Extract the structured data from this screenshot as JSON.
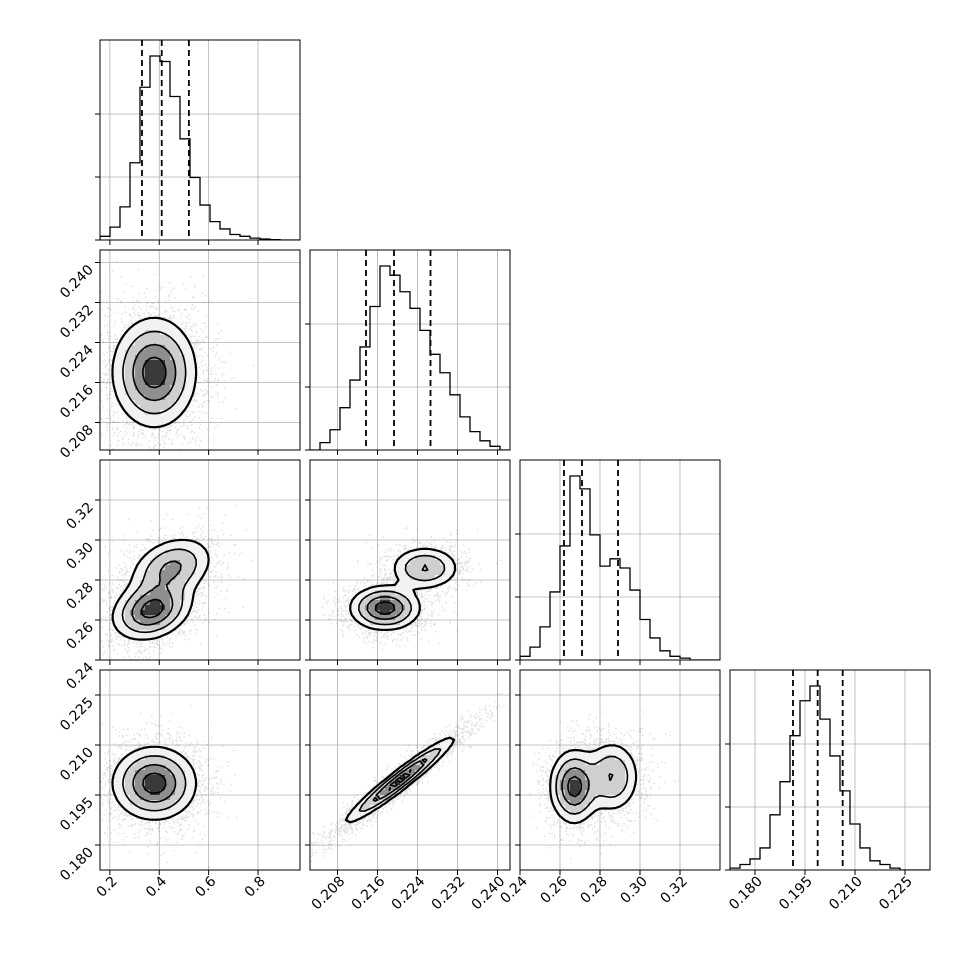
{
  "chart_data": {
    "type": "corner",
    "grid": true,
    "quantile_lines": "dashed",
    "colors": {
      "points": "#000000",
      "grid": "#b0b0b0",
      "axes": "#000000"
    },
    "parameters": [
      {
        "xlim": [
          0.16,
          0.97
        ],
        "ylim": [
          0.16,
          0.38
        ],
        "xticks": [
          "0.2",
          "0.4",
          "0.6",
          "0.8"
        ],
        "ticks_values": [
          0.2,
          0.4,
          0.6,
          0.8
        ],
        "quantiles": [
          0.33,
          0.41,
          0.52
        ],
        "histogram": {
          "edges_start": 0.16,
          "bin_width": 0.0405,
          "counts": [
            0.02,
            0.07,
            0.18,
            0.42,
            0.83,
            1.0,
            0.97,
            0.78,
            0.55,
            0.34,
            0.19,
            0.1,
            0.06,
            0.03,
            0.02,
            0.01,
            0.005,
            0.002,
            0.0,
            0.0
          ]
        }
      },
      {
        "xlim": [
          0.2025,
          0.2425
        ],
        "yticks": [
          "0.208",
          "0.216",
          "0.224",
          "0.232",
          "0.240"
        ],
        "ticks_values": [
          0.208,
          0.216,
          0.224,
          0.232,
          0.24
        ],
        "quantiles": [
          0.2137,
          0.2193,
          0.2266
        ],
        "histogram": {
          "edges_start": 0.2025,
          "bin_width": 0.002,
          "counts": [
            0.0,
            0.04,
            0.11,
            0.23,
            0.38,
            0.56,
            0.78,
            1.0,
            0.95,
            0.86,
            0.77,
            0.65,
            0.52,
            0.42,
            0.3,
            0.18,
            0.1,
            0.05,
            0.02,
            0.0
          ]
        }
      },
      {
        "xlim": [
          0.24,
          0.34
        ],
        "yticks": [
          "0.24",
          "0.26",
          "0.28",
          "0.30",
          "0.32"
        ],
        "ticks_values": [
          0.24,
          0.26,
          0.28,
          0.3,
          0.32
        ],
        "quantiles": [
          0.262,
          0.271,
          0.289
        ],
        "histogram": {
          "edges_start": 0.24,
          "bin_width": 0.005,
          "counts": [
            0.02,
            0.07,
            0.18,
            0.37,
            0.62,
            1.0,
            0.93,
            0.68,
            0.51,
            0.55,
            0.5,
            0.38,
            0.22,
            0.12,
            0.05,
            0.02,
            0.01,
            0.0,
            0.0,
            0.0
          ]
        }
      },
      {
        "xlim": [
          0.1725,
          0.2325
        ],
        "yticks": [
          "0.180",
          "0.195",
          "0.210",
          "0.225"
        ],
        "xticks": [
          "0.180",
          "0.195",
          "0.210",
          "0.225"
        ],
        "ticks_values": [
          0.18,
          0.195,
          0.21,
          0.225
        ],
        "quantiles": [
          0.1914,
          0.1988,
          0.2063
        ],
        "histogram": {
          "edges_start": 0.1725,
          "bin_width": 0.003,
          "counts": [
            0.01,
            0.03,
            0.06,
            0.12,
            0.3,
            0.48,
            0.73,
            0.92,
            1.0,
            0.82,
            0.62,
            0.43,
            0.25,
            0.12,
            0.05,
            0.03,
            0.01,
            0.0,
            0.0,
            0.0
          ]
        }
      }
    ],
    "bottom_xticks": {
      "p1": [
        "0.208",
        "0.216",
        "0.224",
        "0.232",
        "0.240"
      ],
      "p2": [
        "0.24",
        "0.26",
        "0.28",
        "0.30",
        "0.32"
      ]
    },
    "pairs": [
      {
        "x": 0,
        "y": 1,
        "modes": [
          {
            "cx": 0.38,
            "cy": 0.218,
            "sx": 0.085,
            "sy": 0.0055,
            "rho": 0.0,
            "w": 1.0
          }
        ]
      },
      {
        "x": 0,
        "y": 2,
        "modes": [
          {
            "cx": 0.37,
            "cy": 0.265,
            "sx": 0.08,
            "sy": 0.0075,
            "rho": 0.25,
            "w": 0.6
          },
          {
            "cx": 0.45,
            "cy": 0.286,
            "sx": 0.085,
            "sy": 0.008,
            "rho": 0.3,
            "w": 0.4
          }
        ]
      },
      {
        "x": 1,
        "y": 2,
        "modes": [
          {
            "cx": 0.2175,
            "cy": 0.266,
            "sx": 0.0035,
            "sy": 0.0055,
            "rho": 0.0,
            "w": 0.62
          },
          {
            "cx": 0.2255,
            "cy": 0.286,
            "sx": 0.0035,
            "sy": 0.0055,
            "rho": 0.0,
            "w": 0.38
          }
        ]
      },
      {
        "x": 0,
        "y": 3,
        "modes": [
          {
            "cx": 0.38,
            "cy": 0.1985,
            "sx": 0.085,
            "sy": 0.0055,
            "rho": 0.0,
            "w": 1.0
          }
        ]
      },
      {
        "x": 1,
        "y": 3,
        "modes": [
          {
            "cx": 0.2205,
            "cy": 0.1995,
            "sx": 0.0055,
            "sy": 0.0065,
            "rho": 0.96,
            "w": 1.0
          }
        ]
      },
      {
        "x": 2,
        "y": 3,
        "modes": [
          {
            "cx": 0.267,
            "cy": 0.1975,
            "sx": 0.006,
            "sy": 0.0055,
            "rho": 0.0,
            "w": 0.62
          },
          {
            "cx": 0.286,
            "cy": 0.2005,
            "sx": 0.007,
            "sy": 0.0055,
            "rho": 0.0,
            "w": 0.38
          }
        ]
      }
    ]
  }
}
